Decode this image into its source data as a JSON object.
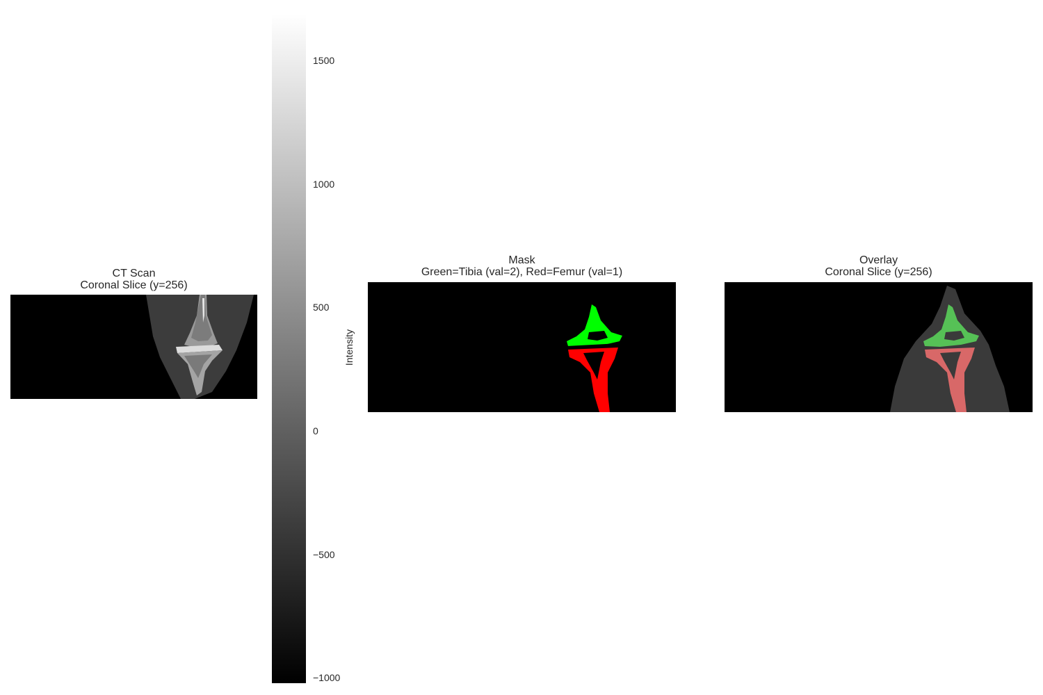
{
  "panels": {
    "ct": {
      "title_line1": "CT Scan",
      "title_line2": "Coronal Slice (y=256)"
    },
    "mask": {
      "title_line1": "Mask",
      "title_line2": "Green=Tibia (val=2), Red=Femur (val=1)"
    },
    "overlay": {
      "title_line1": "Overlay",
      "title_line2": "Coronal Slice (y=256)"
    }
  },
  "colorbar": {
    "label": "Intensity",
    "range": [
      -1000,
      1700
    ],
    "ticks": [
      {
        "value": 1500,
        "label": "1500"
      },
      {
        "value": 1000,
        "label": "1000"
      },
      {
        "value": 500,
        "label": "500"
      },
      {
        "value": 0,
        "label": "0"
      },
      {
        "value": -500,
        "label": "−500"
      },
      {
        "value": -1000,
        "label": "−1000"
      }
    ]
  },
  "colors": {
    "tibia": "#00ff00",
    "femur": "#ff0000",
    "background": "#000000"
  }
}
